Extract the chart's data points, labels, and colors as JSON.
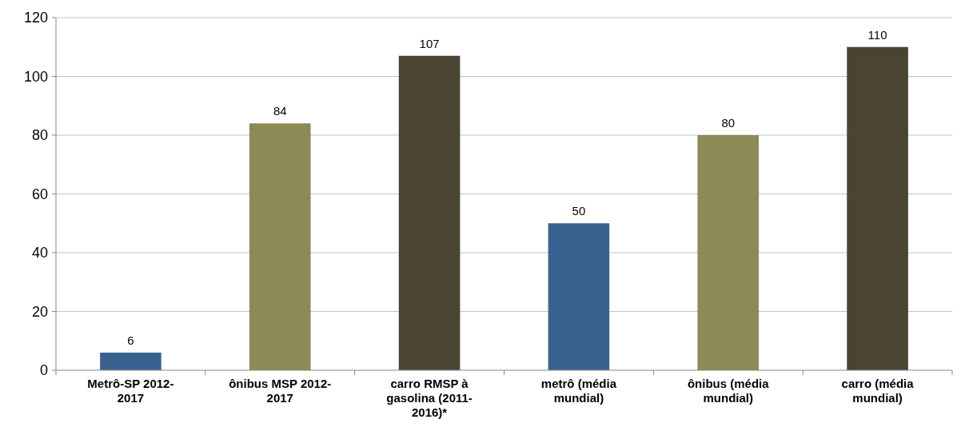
{
  "chart_data": {
    "type": "bar",
    "categories": [
      "Metrô-SP 2012-2017",
      "ônibus MSP 2012-2017",
      "carro RMSP à gasolina (2011-2016)*",
      "metrô (média mundial)",
      "ônibus (média mundial)",
      "carro (média mundial)"
    ],
    "values": [
      6,
      84,
      107,
      50,
      80,
      110
    ],
    "colors": [
      "#3b6190",
      "#8e8a55",
      "#4a4532",
      "#3b6190",
      "#8e8a55",
      "#4a4532"
    ],
    "ylim": [
      0,
      120
    ],
    "yticks": [
      0,
      20,
      40,
      60,
      80,
      100,
      120
    ],
    "grid": "y",
    "data_labels": true
  }
}
